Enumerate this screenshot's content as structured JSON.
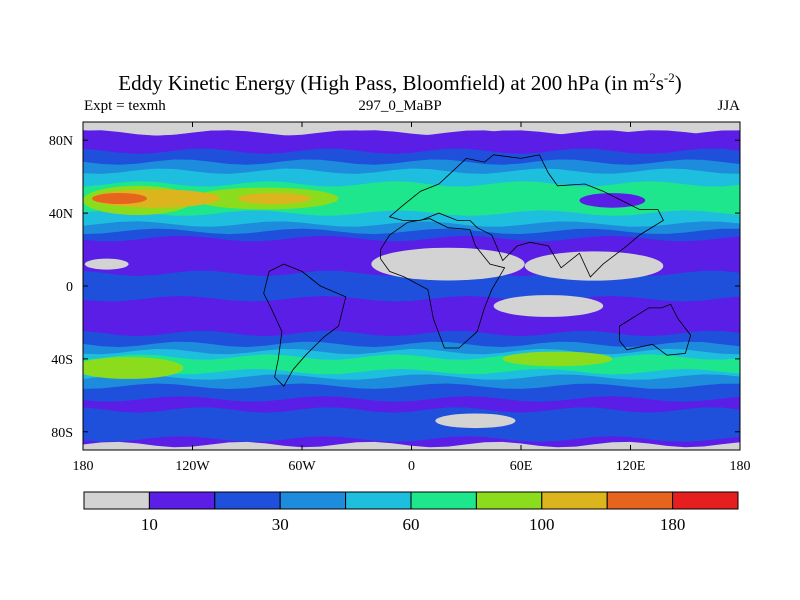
{
  "title": {
    "main": "Eddy Kinetic Energy (High Pass, Bloomfield) at 200 hPa (in m",
    "sup1": "2",
    "mid": "s",
    "sup2": "-2",
    "end": ")"
  },
  "subtitle_left": "Expt = texmh",
  "subtitle_center": "297_0_MaBP",
  "subtitle_right": "JJA",
  "chart_data": {
    "type": "heatmap",
    "projection": "cylindrical-equidistant",
    "x_range": [
      -180,
      180
    ],
    "y_range": [
      -90,
      90
    ],
    "x_ticks": [
      {
        "value": -180,
        "label": "180"
      },
      {
        "value": -120,
        "label": "120W"
      },
      {
        "value": -60,
        "label": "60W"
      },
      {
        "value": 0,
        "label": "0"
      },
      {
        "value": 60,
        "label": "60E"
      },
      {
        "value": 120,
        "label": "120E"
      },
      {
        "value": 180,
        "label": "180"
      }
    ],
    "y_ticks": [
      {
        "value": 80,
        "label": "80N"
      },
      {
        "value": 40,
        "label": "40N"
      },
      {
        "value": 0,
        "label": "0"
      },
      {
        "value": -40,
        "label": "40S"
      },
      {
        "value": -80,
        "label": "80S"
      }
    ],
    "colorbar": {
      "colors": [
        "#d3d3d3",
        "#5a1ee6",
        "#1e50dc",
        "#1e8cdc",
        "#1ebede",
        "#1ee68c",
        "#8cdc1e",
        "#dcb41e",
        "#e6641e",
        "#e61e1e"
      ],
      "labels": [
        {
          "boundary": 1,
          "label": "10"
        },
        {
          "boundary": 3,
          "label": "30"
        },
        {
          "boundary": 5,
          "label": "60"
        },
        {
          "boundary": 7,
          "label": "100"
        },
        {
          "boundary": 9,
          "label": "180"
        }
      ]
    },
    "bands": [
      {
        "level": 0,
        "lat": [
          84,
          90
        ]
      },
      {
        "level": 1,
        "lat": [
          -90,
          84
        ]
      },
      {
        "level": 2,
        "lat": [
          -62,
          -26
        ]
      },
      {
        "level": 3,
        "lat": [
          -55,
          -32
        ]
      },
      {
        "level": 4,
        "lat": [
          -50,
          -36
        ]
      },
      {
        "level": 5,
        "lat": [
          -47,
          -39
        ]
      },
      {
        "level": 2,
        "lat": [
          -84,
          -68
        ]
      },
      {
        "level": 0,
        "lat": [
          -90,
          -87
        ]
      },
      {
        "level": 2,
        "lat": [
          26,
          74
        ]
      },
      {
        "level": 3,
        "lat": [
          30,
          68
        ]
      },
      {
        "level": 4,
        "lat": [
          34,
          63
        ]
      },
      {
        "level": 5,
        "lat": [
          40,
          56
        ]
      },
      {
        "level": 2,
        "lat": [
          -7,
          7
        ]
      }
    ],
    "blobs": [
      {
        "level": 6,
        "lon": -155,
        "lat": -45,
        "rx": 30,
        "ry": 6
      },
      {
        "level": 6,
        "lon": 80,
        "lat": -40,
        "rx": 30,
        "ry": 4
      },
      {
        "level": 6,
        "lon": -150,
        "lat": 47,
        "rx": 30,
        "ry": 8
      },
      {
        "level": 6,
        "lon": -80,
        "lat": 48,
        "rx": 40,
        "ry": 6
      },
      {
        "level": 7,
        "lon": -140,
        "lat": 48,
        "rx": 35,
        "ry": 5
      },
      {
        "level": 7,
        "lon": -75,
        "lat": 48,
        "rx": 20,
        "ry": 3
      },
      {
        "level": 8,
        "lon": -160,
        "lat": 48,
        "rx": 15,
        "ry": 3
      },
      {
        "level": 1,
        "lon": 110,
        "lat": 47,
        "rx": 18,
        "ry": 4
      },
      {
        "level": 0,
        "lon": 20,
        "lat": 12,
        "rx": 42,
        "ry": 9
      },
      {
        "level": 0,
        "lon": 100,
        "lat": 11,
        "rx": 38,
        "ry": 8
      },
      {
        "level": 0,
        "lon": 75,
        "lat": -11,
        "rx": 30,
        "ry": 6
      },
      {
        "level": 0,
        "lon": 35,
        "lat": -74,
        "rx": 22,
        "ry": 4
      },
      {
        "level": 0,
        "lon": -167,
        "lat": 12,
        "rx": 12,
        "ry": 3
      }
    ]
  }
}
